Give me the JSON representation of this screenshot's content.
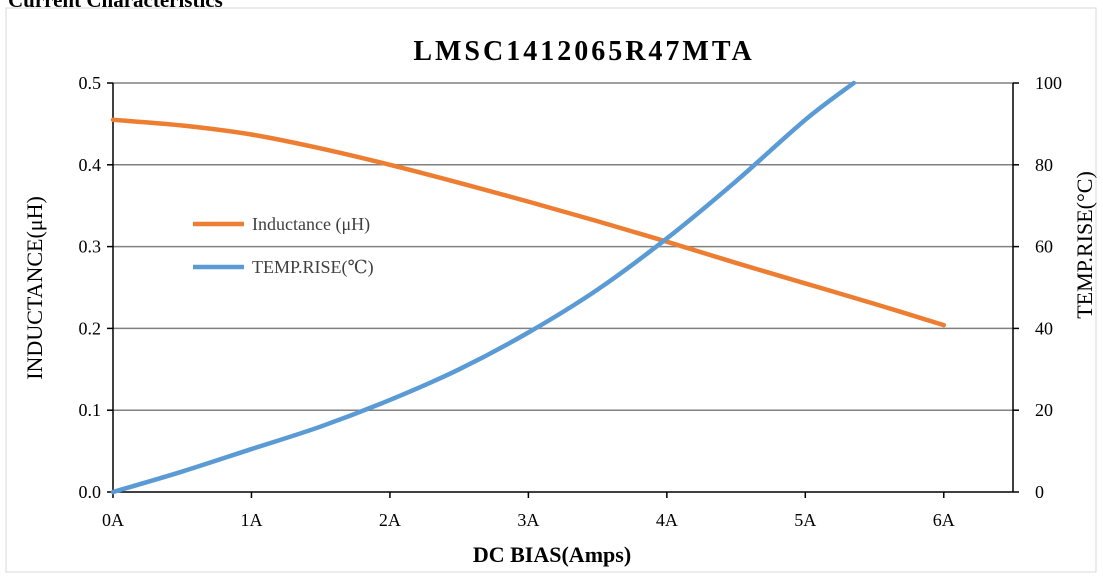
{
  "page": {
    "heading": "Current Characteristics"
  },
  "chart_data": {
    "type": "line",
    "title": "LMSC1412065R47MTA",
    "xlabel": "DC BIAS(Amps)",
    "ylabel_left": "INDUCTANCE(μH)",
    "ylabel_right": "TEMP.RISE(°C)",
    "x_ticks": [
      {
        "value": 0,
        "label": "0A"
      },
      {
        "value": 1,
        "label": "1A"
      },
      {
        "value": 2,
        "label": "2A"
      },
      {
        "value": 3,
        "label": "3A"
      },
      {
        "value": 4,
        "label": "4A"
      },
      {
        "value": 5,
        "label": "5A"
      },
      {
        "value": 6,
        "label": "6A"
      }
    ],
    "xlim": [
      0,
      6.5
    ],
    "ylim_left": [
      0,
      0.5
    ],
    "ylim_right": [
      0,
      100
    ],
    "y_left_ticks": [
      {
        "value": 0,
        "label": "0.0"
      },
      {
        "value": 0.1,
        "label": "0.1"
      },
      {
        "value": 0.2,
        "label": "0.2"
      },
      {
        "value": 0.3,
        "label": "0.3"
      },
      {
        "value": 0.4,
        "label": "0.4"
      },
      {
        "value": 0.5,
        "label": "0.5"
      }
    ],
    "y_right_ticks": [
      {
        "value": 0,
        "label": "0"
      },
      {
        "value": 20,
        "label": "20"
      },
      {
        "value": 40,
        "label": "40"
      },
      {
        "value": 60,
        "label": "60"
      },
      {
        "value": 80,
        "label": "80"
      },
      {
        "value": 100,
        "label": "100"
      }
    ],
    "grid": true,
    "legend_position": "upper-left",
    "series": [
      {
        "name": "Inductance (μH)",
        "axis": "left",
        "color": "#ED7D31",
        "x": [
          0,
          0.5,
          1,
          1.5,
          2,
          2.5,
          3,
          3.5,
          4,
          4.5,
          5,
          5.5,
          6
        ],
        "y": [
          0.455,
          0.448,
          0.437,
          0.42,
          0.4,
          0.378,
          0.355,
          0.331,
          0.306,
          0.28,
          0.255,
          0.23,
          0.204
        ]
      },
      {
        "name": "TEMP.RISE(℃)",
        "axis": "right",
        "color": "#5B9BD5",
        "x": [
          0,
          0.5,
          1,
          1.5,
          2,
          2.5,
          3,
          3.5,
          4,
          4.5,
          5,
          5.35
        ],
        "y": [
          0,
          5,
          10.5,
          16,
          22.5,
          30,
          39,
          49.5,
          62,
          76,
          91,
          100
        ]
      }
    ]
  }
}
